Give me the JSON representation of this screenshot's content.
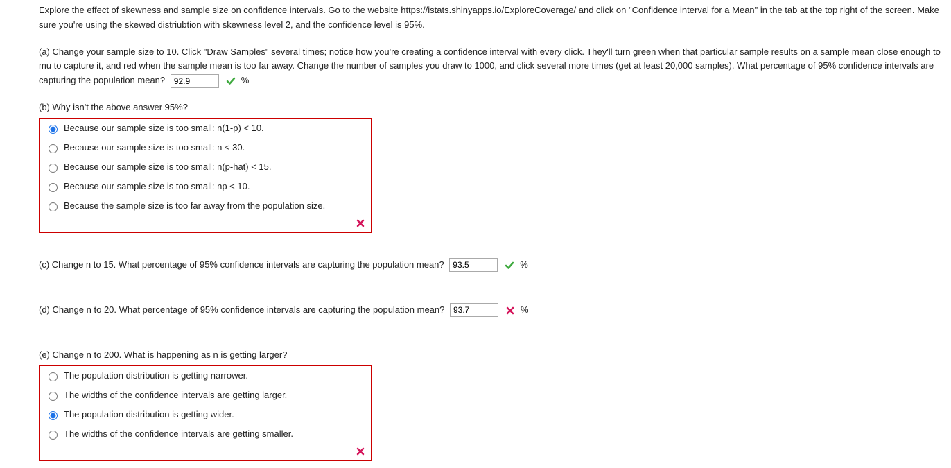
{
  "intro": {
    "text": "Explore the effect of skewness and sample size on confidence intervals. Go to the website https://istats.shinyapps.io/ExploreCoverage/ and click on \"Confidence interval for a Mean\" in the tab at the top right of the screen. Make sure you're using the skewed distriubtion with skewness level 2, and the confidence level is 95%."
  },
  "a": {
    "text": "(a) Change your sample size to 10. Click \"Draw Samples\" several times; notice how you're creating a confidence interval with every click. They'll turn green when that particular sample results on a sample mean close enough to mu to capture it, and red when the sample mean is too far away. Change the number of samples you draw to 1000, and click several more times (get at least 20,000 samples). What percentage of 95% confidence intervals are capturing the population mean?",
    "value": "92.9",
    "unit": "%",
    "status": "correct"
  },
  "b": {
    "prompt": "(b) Why isn't the above answer 95%?",
    "options": [
      "Because our sample size is too small: n(1-p) < 10.",
      "Because our sample size is too small: n < 30.",
      "Because our sample size is too small: n(p-hat) < 15.",
      "Because our sample size is too small: np < 10.",
      "Because the sample size is too far away from the population size."
    ],
    "selected": 0,
    "status": "wrong"
  },
  "c": {
    "text": "(c) Change n to 15. What percentage of 95% confidence intervals are capturing the population mean?",
    "value": "93.5",
    "unit": "%",
    "status": "correct"
  },
  "d": {
    "text": "(d) Change n to 20. What percentage of 95% confidence intervals are capturing the population mean?",
    "value": "93.7",
    "unit": "%",
    "status": "wrong"
  },
  "e": {
    "prompt": "(e) Change n to 200. What is happening as n is getting larger?",
    "options": [
      "The population distribution is getting narrower.",
      "The widths of the confidence intervals are getting larger.",
      "The population distribution is getting wider.",
      "The widths of the confidence intervals are getting smaller."
    ],
    "selected": 2,
    "status": "wrong"
  },
  "colors": {
    "correct": "#3faa3f",
    "wrong": "#d4145a",
    "border_wrong": "#c00"
  }
}
